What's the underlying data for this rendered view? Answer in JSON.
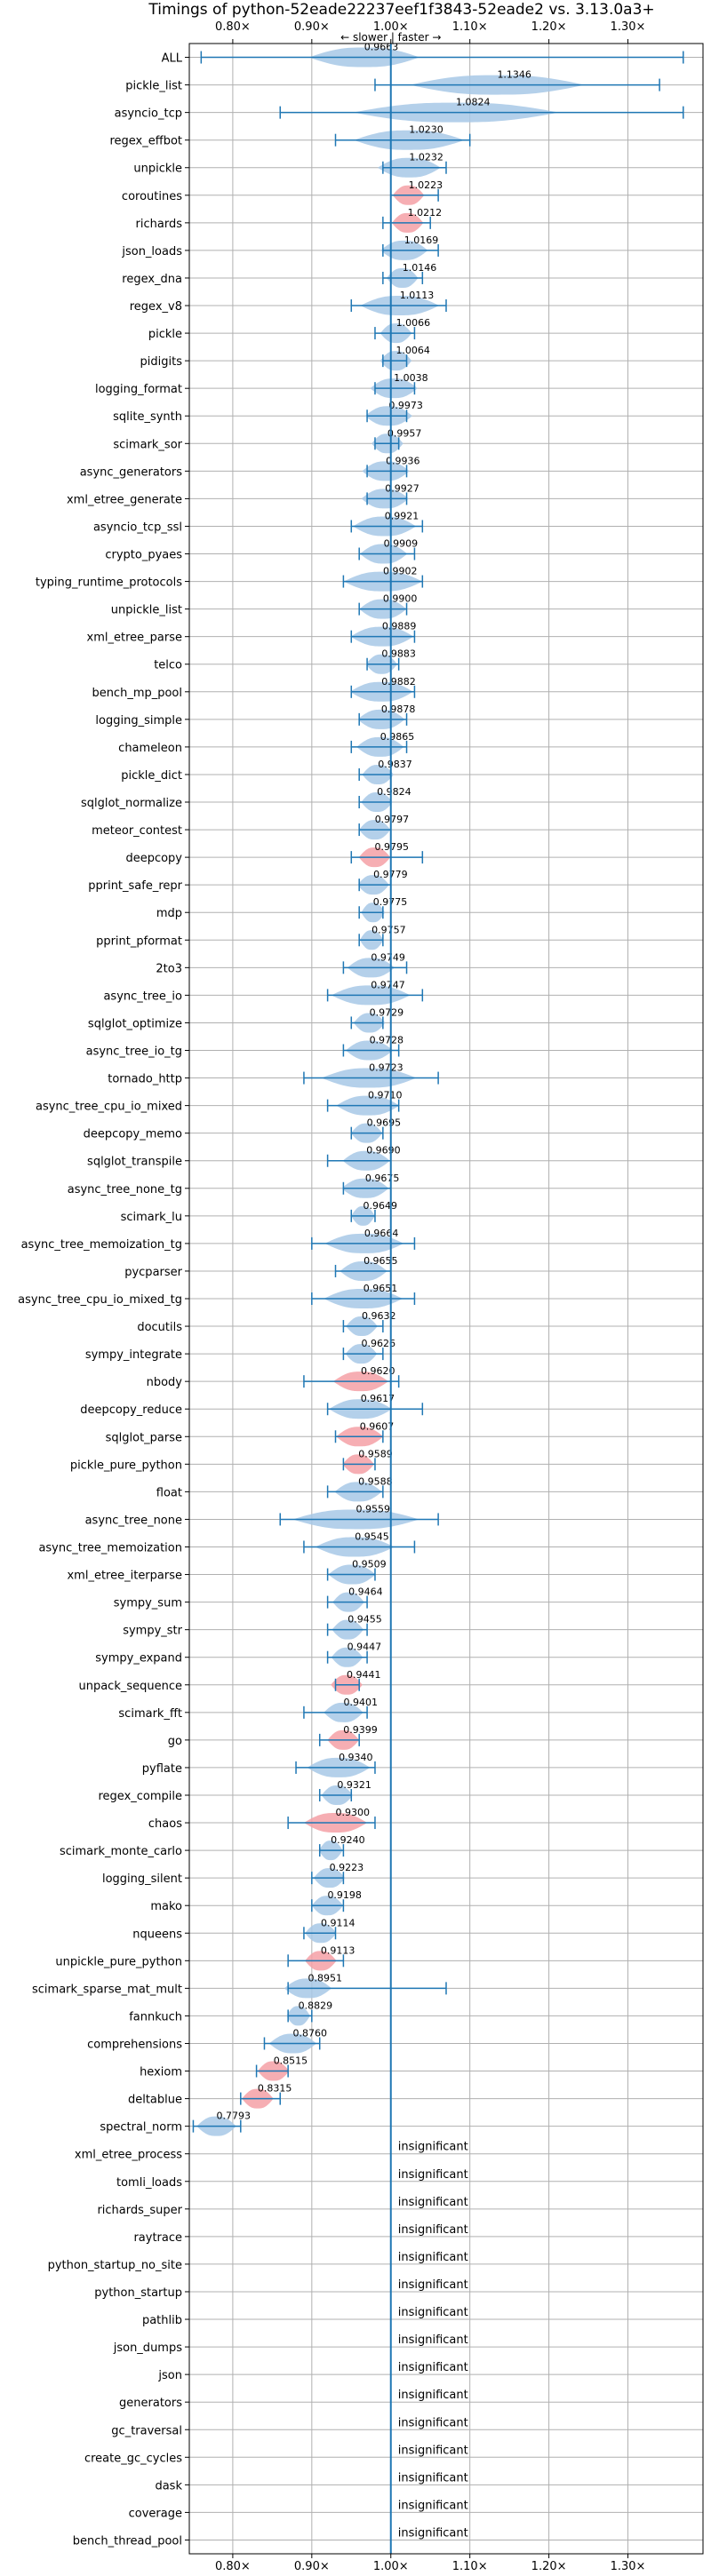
{
  "chart_data": {
    "type": "violin",
    "title": "Timings of python-52eade22237eef1f3843-52eade2 vs. 3.13.0a3+",
    "direction_label": "← slower | faster →",
    "xlim": [
      0.745,
      1.395
    ],
    "xticks": [
      0.8,
      0.9,
      1.0,
      1.1,
      1.2,
      1.3
    ],
    "xtick_labels": [
      "0.80×",
      "0.90×",
      "1.00×",
      "1.10×",
      "1.20×",
      "1.30×"
    ],
    "grid": true,
    "insignificant_label": "insignificant",
    "colors": {
      "normal": "#a7c8e6",
      "highlight": "#f4a0a6",
      "errorbar": "#1f77b4",
      "refline": "#1f77b4",
      "grid": "#b0b0b0"
    },
    "benchmarks": [
      {
        "name": "ALL",
        "value": 0.9663,
        "lo": 0.76,
        "hi": 1.37,
        "vw": 0.07
      },
      {
        "name": "pickle_list",
        "value": 1.1346,
        "lo": 0.98,
        "hi": 1.34,
        "vw": 0.11
      },
      {
        "name": "asyncio_tcp",
        "value": 1.0824,
        "lo": 0.86,
        "hi": 1.37,
        "vw": 0.13
      },
      {
        "name": "regex_effbot",
        "value": 1.023,
        "lo": 0.93,
        "hi": 1.1,
        "vw": 0.07
      },
      {
        "name": "unpickle",
        "value": 1.0232,
        "lo": 0.99,
        "hi": 1.07,
        "vw": 0.04
      },
      {
        "name": "coroutines",
        "value": 1.0223,
        "lo": 1.0,
        "hi": 1.06,
        "vw": 0.02,
        "highlight": true
      },
      {
        "name": "richards",
        "value": 1.0212,
        "lo": 0.99,
        "hi": 1.05,
        "vw": 0.02,
        "highlight": true
      },
      {
        "name": "json_loads",
        "value": 1.0169,
        "lo": 0.99,
        "hi": 1.06,
        "vw": 0.03
      },
      {
        "name": "regex_dna",
        "value": 1.0146,
        "lo": 0.99,
        "hi": 1.04,
        "vw": 0.02
      },
      {
        "name": "regex_v8",
        "value": 1.0113,
        "lo": 0.95,
        "hi": 1.07,
        "vw": 0.05
      },
      {
        "name": "pickle",
        "value": 1.0066,
        "lo": 0.98,
        "hi": 1.03,
        "vw": 0.02
      },
      {
        "name": "pidigits",
        "value": 1.0064,
        "lo": 0.99,
        "hi": 1.02,
        "vw": 0.02
      },
      {
        "name": "logging_format",
        "value": 1.0038,
        "lo": 0.98,
        "hi": 1.03,
        "vw": 0.03
      },
      {
        "name": "sqlite_synth",
        "value": 0.9973,
        "lo": 0.97,
        "hi": 1.02,
        "vw": 0.03
      },
      {
        "name": "scimark_sor",
        "value": 0.9957,
        "lo": 0.98,
        "hi": 1.01,
        "vw": 0.02
      },
      {
        "name": "async_generators",
        "value": 0.9936,
        "lo": 0.97,
        "hi": 1.02,
        "vw": 0.03
      },
      {
        "name": "xml_etree_generate",
        "value": 0.9927,
        "lo": 0.97,
        "hi": 1.02,
        "vw": 0.03
      },
      {
        "name": "asyncio_tcp_ssl",
        "value": 0.9921,
        "lo": 0.95,
        "hi": 1.04,
        "vw": 0.04
      },
      {
        "name": "crypto_pyaes",
        "value": 0.9909,
        "lo": 0.96,
        "hi": 1.03,
        "vw": 0.03
      },
      {
        "name": "typing_runtime_protocols",
        "value": 0.9902,
        "lo": 0.94,
        "hi": 1.04,
        "vw": 0.05
      },
      {
        "name": "unpickle_list",
        "value": 0.99,
        "lo": 0.96,
        "hi": 1.02,
        "vw": 0.03
      },
      {
        "name": "xml_etree_parse",
        "value": 0.9889,
        "lo": 0.95,
        "hi": 1.03,
        "vw": 0.04
      },
      {
        "name": "telco",
        "value": 0.9883,
        "lo": 0.97,
        "hi": 1.01,
        "vw": 0.02
      },
      {
        "name": "bench_mp_pool",
        "value": 0.9882,
        "lo": 0.95,
        "hi": 1.03,
        "vw": 0.04
      },
      {
        "name": "logging_simple",
        "value": 0.9878,
        "lo": 0.96,
        "hi": 1.02,
        "vw": 0.03
      },
      {
        "name": "chameleon",
        "value": 0.9865,
        "lo": 0.95,
        "hi": 1.02,
        "vw": 0.03
      },
      {
        "name": "pickle_dict",
        "value": 0.9837,
        "lo": 0.96,
        "hi": 1.0,
        "vw": 0.02
      },
      {
        "name": "sqlglot_normalize",
        "value": 0.9824,
        "lo": 0.96,
        "hi": 1.0,
        "vw": 0.02
      },
      {
        "name": "meteor_contest",
        "value": 0.9797,
        "lo": 0.96,
        "hi": 1.0,
        "vw": 0.02
      },
      {
        "name": "deepcopy",
        "value": 0.9795,
        "lo": 0.95,
        "hi": 1.04,
        "vw": 0.02,
        "highlight": true
      },
      {
        "name": "pprint_safe_repr",
        "value": 0.9779,
        "lo": 0.96,
        "hi": 1.0,
        "vw": 0.02
      },
      {
        "name": "mdp",
        "value": 0.9775,
        "lo": 0.96,
        "hi": 0.99,
        "vw": 0.015
      },
      {
        "name": "pprint_pformat",
        "value": 0.9757,
        "lo": 0.96,
        "hi": 0.99,
        "vw": 0.015
      },
      {
        "name": "2to3",
        "value": 0.9749,
        "lo": 0.94,
        "hi": 1.02,
        "vw": 0.03
      },
      {
        "name": "async_tree_io",
        "value": 0.9747,
        "lo": 0.92,
        "hi": 1.04,
        "vw": 0.05
      },
      {
        "name": "sqlglot_optimize",
        "value": 0.9729,
        "lo": 0.95,
        "hi": 0.99,
        "vw": 0.02
      },
      {
        "name": "async_tree_io_tg",
        "value": 0.9728,
        "lo": 0.94,
        "hi": 1.01,
        "vw": 0.03
      },
      {
        "name": "tornado_http",
        "value": 0.9723,
        "lo": 0.89,
        "hi": 1.06,
        "vw": 0.06
      },
      {
        "name": "async_tree_cpu_io_mixed",
        "value": 0.971,
        "lo": 0.92,
        "hi": 1.01,
        "vw": 0.04
      },
      {
        "name": "deepcopy_memo",
        "value": 0.9695,
        "lo": 0.95,
        "hi": 0.99,
        "vw": 0.02
      },
      {
        "name": "sqlglot_transpile",
        "value": 0.969,
        "lo": 0.92,
        "hi": 1.0,
        "vw": 0.03
      },
      {
        "name": "async_tree_none_tg",
        "value": 0.9675,
        "lo": 0.94,
        "hi": 1.0,
        "vw": 0.03
      },
      {
        "name": "scimark_lu",
        "value": 0.9649,
        "lo": 0.95,
        "hi": 0.98,
        "vw": 0.015
      },
      {
        "name": "async_tree_memoization_tg",
        "value": 0.9664,
        "lo": 0.9,
        "hi": 1.03,
        "vw": 0.05
      },
      {
        "name": "pycparser",
        "value": 0.9655,
        "lo": 0.93,
        "hi": 1.0,
        "vw": 0.03
      },
      {
        "name": "async_tree_cpu_io_mixed_tg",
        "value": 0.9651,
        "lo": 0.9,
        "hi": 1.03,
        "vw": 0.05
      },
      {
        "name": "docutils",
        "value": 0.9632,
        "lo": 0.94,
        "hi": 0.99,
        "vw": 0.02
      },
      {
        "name": "sympy_integrate",
        "value": 0.9626,
        "lo": 0.94,
        "hi": 0.99,
        "vw": 0.02
      },
      {
        "name": "nbody",
        "value": 0.962,
        "lo": 0.89,
        "hi": 1.01,
        "vw": 0.035,
        "highlight": true
      },
      {
        "name": "deepcopy_reduce",
        "value": 0.9617,
        "lo": 0.92,
        "hi": 1.04,
        "vw": 0.04
      },
      {
        "name": "sqlglot_parse",
        "value": 0.9607,
        "lo": 0.93,
        "hi": 0.99,
        "vw": 0.03,
        "highlight": true
      },
      {
        "name": "pickle_pure_python",
        "value": 0.9589,
        "lo": 0.94,
        "hi": 0.98,
        "vw": 0.02,
        "highlight": true
      },
      {
        "name": "float",
        "value": 0.9588,
        "lo": 0.92,
        "hi": 0.99,
        "vw": 0.03
      },
      {
        "name": "async_tree_none",
        "value": 0.9559,
        "lo": 0.86,
        "hi": 1.06,
        "vw": 0.08
      },
      {
        "name": "async_tree_memoization",
        "value": 0.9545,
        "lo": 0.89,
        "hi": 1.03,
        "vw": 0.05
      },
      {
        "name": "xml_etree_iterparse",
        "value": 0.9509,
        "lo": 0.92,
        "hi": 0.98,
        "vw": 0.03
      },
      {
        "name": "sympy_sum",
        "value": 0.9464,
        "lo": 0.92,
        "hi": 0.97,
        "vw": 0.02
      },
      {
        "name": "sympy_str",
        "value": 0.9455,
        "lo": 0.92,
        "hi": 0.97,
        "vw": 0.02
      },
      {
        "name": "sympy_expand",
        "value": 0.9447,
        "lo": 0.92,
        "hi": 0.97,
        "vw": 0.02
      },
      {
        "name": "unpack_sequence",
        "value": 0.9441,
        "lo": 0.93,
        "hi": 0.96,
        "vw": 0.02,
        "highlight": true
      },
      {
        "name": "scimark_fft",
        "value": 0.9401,
        "lo": 0.89,
        "hi": 0.97,
        "vw": 0.025
      },
      {
        "name": "go",
        "value": 0.9399,
        "lo": 0.91,
        "hi": 0.96,
        "vw": 0.02,
        "highlight": true
      },
      {
        "name": "pyflate",
        "value": 0.934,
        "lo": 0.88,
        "hi": 0.98,
        "vw": 0.04
      },
      {
        "name": "regex_compile",
        "value": 0.9321,
        "lo": 0.91,
        "hi": 0.95,
        "vw": 0.02
      },
      {
        "name": "chaos",
        "value": 0.93,
        "lo": 0.87,
        "hi": 0.98,
        "vw": 0.04,
        "highlight": true
      },
      {
        "name": "scimark_monte_carlo",
        "value": 0.924,
        "lo": 0.91,
        "hi": 0.94,
        "vw": 0.015
      },
      {
        "name": "logging_silent",
        "value": 0.9223,
        "lo": 0.9,
        "hi": 0.94,
        "vw": 0.02
      },
      {
        "name": "mako",
        "value": 0.9198,
        "lo": 0.9,
        "hi": 0.94,
        "vw": 0.02
      },
      {
        "name": "nqueens",
        "value": 0.9114,
        "lo": 0.89,
        "hi": 0.93,
        "vw": 0.02
      },
      {
        "name": "unpickle_pure_python",
        "value": 0.9113,
        "lo": 0.87,
        "hi": 0.94,
        "vw": 0.02,
        "highlight": true
      },
      {
        "name": "scimark_sparse_mat_mult",
        "value": 0.8951,
        "lo": 0.87,
        "hi": 1.07,
        "vw": 0.03
      },
      {
        "name": "fannkuch",
        "value": 0.8829,
        "lo": 0.87,
        "hi": 0.9,
        "vw": 0.015
      },
      {
        "name": "comprehensions",
        "value": 0.876,
        "lo": 0.84,
        "hi": 0.91,
        "vw": 0.03
      },
      {
        "name": "hexiom",
        "value": 0.8515,
        "lo": 0.83,
        "hi": 0.87,
        "vw": 0.02,
        "highlight": true
      },
      {
        "name": "deltablue",
        "value": 0.8315,
        "lo": 0.81,
        "hi": 0.86,
        "vw": 0.02,
        "highlight": true
      },
      {
        "name": "spectral_norm",
        "value": 0.7793,
        "lo": 0.75,
        "hi": 0.81,
        "vw": 0.025
      },
      {
        "name": "xml_etree_process",
        "insignificant": true
      },
      {
        "name": "tomli_loads",
        "insignificant": true
      },
      {
        "name": "richards_super",
        "insignificant": true
      },
      {
        "name": "raytrace",
        "insignificant": true
      },
      {
        "name": "python_startup_no_site",
        "insignificant": true
      },
      {
        "name": "python_startup",
        "insignificant": true
      },
      {
        "name": "pathlib",
        "insignificant": true
      },
      {
        "name": "json_dumps",
        "insignificant": true
      },
      {
        "name": "json",
        "insignificant": true
      },
      {
        "name": "generators",
        "insignificant": true
      },
      {
        "name": "gc_traversal",
        "insignificant": true
      },
      {
        "name": "create_gc_cycles",
        "insignificant": true
      },
      {
        "name": "dask",
        "insignificant": true
      },
      {
        "name": "coverage",
        "insignificant": true
      },
      {
        "name": "bench_thread_pool",
        "insignificant": true
      }
    ]
  }
}
